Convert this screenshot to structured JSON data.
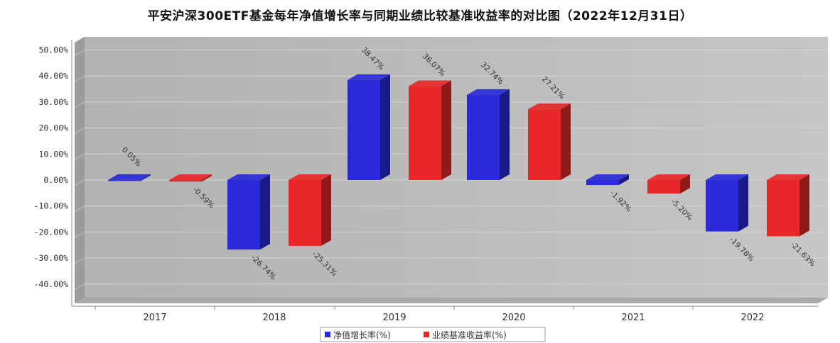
{
  "chart_data": {
    "type": "bar",
    "title": "平安沪深300ETF基金每年净值增长率与同期业绩比较基准收益率的对比图（2022年12月31日）",
    "categories": [
      "2017",
      "2018",
      "2019",
      "2020",
      "2021",
      "2022"
    ],
    "series": [
      {
        "name": "净值增长率(%)",
        "color": "#2a2ad8",
        "values": [
          0.05,
          -26.74,
          38.47,
          32.74,
          -1.92,
          -19.78
        ],
        "labels": [
          "0.05%",
          "-26.74%",
          "38.47%",
          "32.74%",
          "-1.92%",
          "-19.78%"
        ]
      },
      {
        "name": "业绩基准收益率(%)",
        "color": "#e82828",
        "values": [
          -0.59,
          -25.31,
          36.07,
          27.21,
          -5.2,
          -21.63
        ],
        "labels": [
          "-0.59%",
          "-25.31%",
          "36.07%",
          "27.21%",
          "-5.20%",
          "-21.63%"
        ]
      }
    ],
    "yticks": [
      "50.00%",
      "40.00%",
      "30.00%",
      "20.00%",
      "10.00%",
      "0.00%",
      "-10.00%",
      "-20.00%",
      "-30.00%",
      "-40.00%"
    ],
    "ylim": [
      -45,
      55
    ],
    "grid": true,
    "legend": "bottom-center"
  }
}
